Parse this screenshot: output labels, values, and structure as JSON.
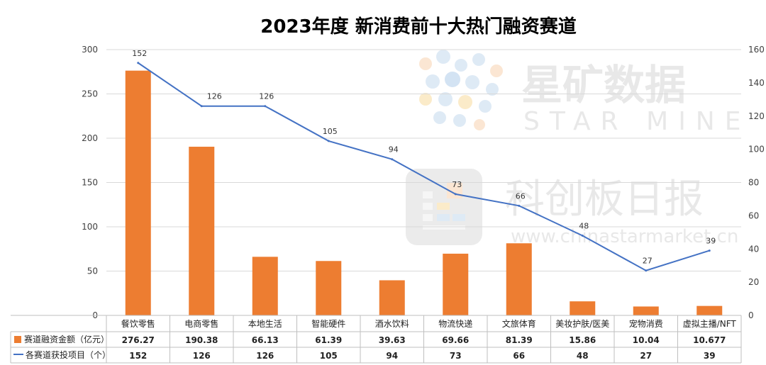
{
  "chart_data": {
    "type": "bar+line",
    "title": "2023年度 新消费前十大热门融资赛道",
    "categories": [
      "餐饮零售",
      "电商零售",
      "本地生活",
      "智能硬件",
      "酒水饮料",
      "物流快递",
      "文旅体育",
      "美妆护肤/医美",
      "宠物消费",
      "虚拟主播/NFT"
    ],
    "series": [
      {
        "name": "赛道融资金额（亿元）",
        "type": "bar",
        "axis": "left",
        "color": "#ED7D31",
        "values": [
          276.27,
          190.38,
          66.13,
          61.39,
          39.63,
          69.66,
          81.39,
          15.86,
          10.04,
          10.677
        ],
        "display": [
          "276.27",
          "190.38",
          "66.13",
          "61.39",
          "39.63",
          "69.66",
          "81.39",
          "15.86",
          "10.04",
          "10.677"
        ]
      },
      {
        "name": "各赛道获投项目（个）",
        "type": "line",
        "axis": "right",
        "color": "#4472C4",
        "values": [
          152,
          126,
          126,
          105,
          94,
          73,
          66,
          48,
          27,
          39
        ],
        "display": [
          "152",
          "126",
          "126",
          "105",
          "94",
          "73",
          "66",
          "48",
          "27",
          "39"
        ]
      }
    ],
    "y_left": {
      "min": 0,
      "max": 300,
      "ticks": [
        0,
        50,
        100,
        150,
        200,
        250,
        300
      ]
    },
    "y_right": {
      "min": 0,
      "max": 160,
      "ticks": [
        0,
        20,
        40,
        60,
        80,
        100,
        120,
        140,
        160
      ]
    },
    "grid": true,
    "legend": "data-table"
  },
  "watermark": {
    "brand_cn": "星矿数据",
    "brand_en": "STAR MINE",
    "outlet": "科创板日报",
    "url": "www.chinastarmarket.cn"
  }
}
